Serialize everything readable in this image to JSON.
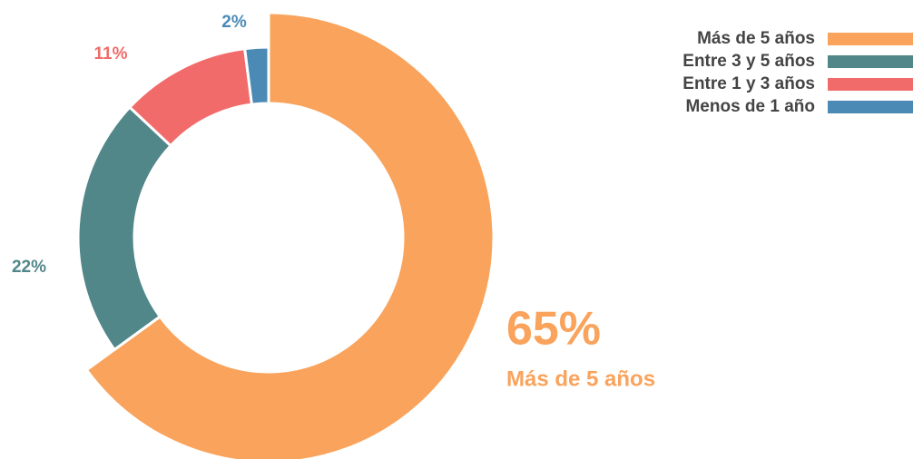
{
  "chart_data": {
    "type": "donut",
    "categories": [
      "Más de 5 años",
      "Entre 3 y 5 años",
      "Entre 1 y 3 años",
      "Menos de 1 año"
    ],
    "values": [
      65,
      22,
      11,
      2
    ],
    "value_labels": [
      "65%",
      "22%",
      "11%",
      "2%"
    ],
    "colors": [
      "#f9a35c",
      "#52878a",
      "#f26b6b",
      "#4a8ab5"
    ],
    "legend": "top-right"
  }
}
